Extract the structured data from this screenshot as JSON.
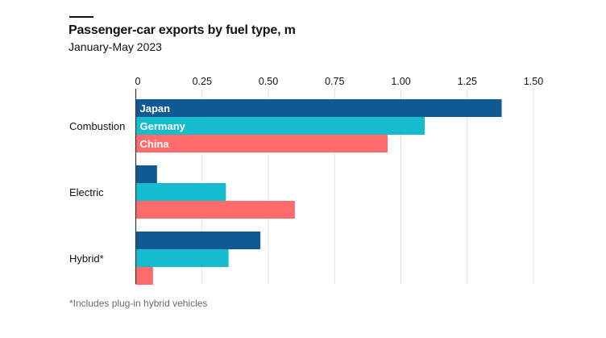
{
  "chart_data": {
    "type": "bar",
    "orientation": "horizontal",
    "title": "Passenger-car exports by fuel type, m",
    "subtitle": "January-May 2023",
    "xlabel": "",
    "ylabel": "",
    "xlim": [
      0,
      1.5
    ],
    "ticks": [
      0,
      0.25,
      0.5,
      0.75,
      1.0,
      1.25,
      1.5
    ],
    "tick_labels": [
      "0",
      "0.25",
      "0.50",
      "0.75",
      "1.00",
      "1.25",
      "1.50"
    ],
    "grid": true,
    "categories": [
      "Combustion",
      "Electric",
      "Hybrid*"
    ],
    "series": [
      {
        "name": "Japan",
        "color": "#0f5a95",
        "values": [
          1.38,
          0.08,
          0.47
        ]
      },
      {
        "name": "Germany",
        "color": "#14bccd",
        "values": [
          1.09,
          0.34,
          0.35
        ]
      },
      {
        "name": "China",
        "color": "#fe6b6b",
        "values": [
          0.95,
          0.6,
          0.065
        ]
      }
    ],
    "legend": "inline-labels-on-first-category-bars",
    "footnote": "*Includes plug-in hybrid vehicles"
  },
  "colors": {
    "grid": "#e0e0e0",
    "axis": "#333333"
  }
}
